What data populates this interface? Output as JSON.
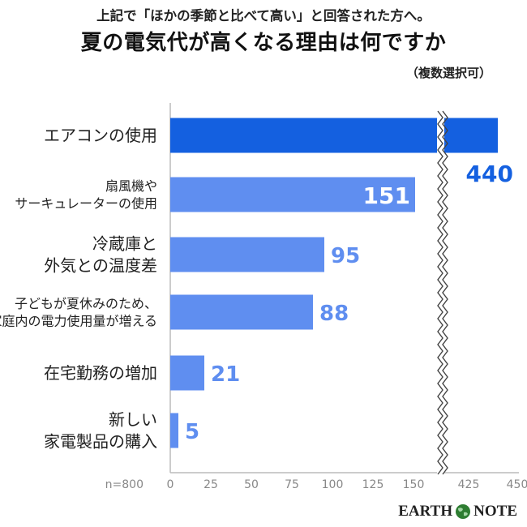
{
  "header": {
    "subtitle": "上記で「ほかの季節と比べて高い」と回答された方へ。",
    "title": "夏の電気代が高くなる理由は何ですか",
    "note": "（複数選択可）"
  },
  "brand": {
    "left": "EARTH",
    "right": "NOTE"
  },
  "sample_size": "n=800",
  "colors": {
    "highlight": "#1460e0",
    "bar": "#5f8ef0",
    "highlight_label": "#1460e0",
    "bar_label": "#5f8ef0",
    "axis": "#bbbbbb"
  },
  "chart_data": {
    "type": "bar",
    "orientation": "horizontal",
    "categories": [
      [
        "エアコンの使用"
      ],
      [
        "扇風機や",
        "サーキュレーターの使用"
      ],
      [
        "冷蔵庫と",
        "外気との温度差"
      ],
      [
        "子どもが夏休みのため、",
        "家庭内の電力使用量が増える"
      ],
      [
        "在宅勤務の増加"
      ],
      [
        "新しい",
        "家電製品の購入"
      ]
    ],
    "values": [
      440,
      151,
      95,
      88,
      21,
      5
    ],
    "data_labels": [
      "440",
      "151",
      "95",
      "88",
      "21",
      "5"
    ],
    "x_ticks_left": [
      "0",
      "25",
      "50",
      "75",
      "100",
      "125",
      "150"
    ],
    "x_ticks_right": [
      "425",
      "450"
    ],
    "xlim_left": [
      0,
      150
    ],
    "xlim_right": [
      415,
      450
    ],
    "axis_break": true
  }
}
